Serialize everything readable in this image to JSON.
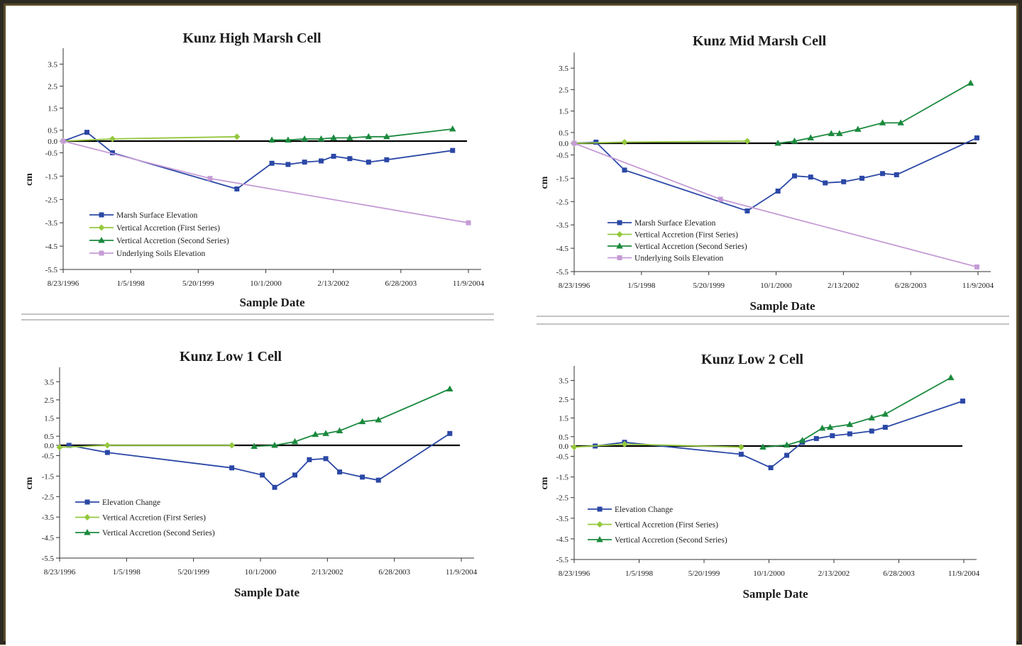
{
  "colors": {
    "elevation": "#2b48a6",
    "accretion_first": "#94c83d",
    "accretion_second": "#1b8a3e",
    "soils": "#c59bd6",
    "zero_line": "#000000"
  },
  "chart_data": [
    {
      "type": "line",
      "title": "Kunz High Marsh Cell",
      "xlabel": "Sample Date",
      "ylabel": "cm",
      "x_ticks": [
        "8/23/1996",
        "1/5/1998",
        "5/20/1999",
        "10/1/2000",
        "2/13/2002",
        "6/28/2003",
        "11/9/2004"
      ],
      "y_ticks": [
        3.5,
        2.5,
        1.5,
        0.5,
        0.0,
        -0.5,
        -1.5,
        -2.5,
        -3.5,
        -4.5,
        -5.5
      ],
      "y_tick_labels": [
        "3.5",
        "2.5",
        "1.5",
        "0.5",
        "0.0",
        "-0.5",
        "-1.5",
        "-2.5",
        "-3.5",
        "-4.5",
        "-5.5"
      ],
      "ylim": [
        -5.5,
        3.9
      ],
      "legend_position": "bottom-left",
      "series": [
        {
          "name": "Marsh Surface Elevation",
          "color": "elevation",
          "marker": "square",
          "x": [
            "1996-08-23",
            "1997-02-15",
            "1997-08-23",
            "2000-03-01",
            "2000-11-15",
            "2001-03-15",
            "2001-07-15",
            "2001-11-15",
            "2002-02-15",
            "2002-06-15",
            "2002-11-01",
            "2003-03-15",
            "2004-07-15"
          ],
          "y": [
            0.0,
            0.4,
            -0.5,
            -2.05,
            -0.95,
            -1.0,
            -0.9,
            -0.85,
            -0.65,
            -0.75,
            -0.9,
            -0.8,
            -0.4
          ]
        },
        {
          "name": "Vertical Accretion (First Series)",
          "color": "accretion_first",
          "marker": "diamond",
          "x": [
            "1996-08-23",
            "1997-08-23",
            "2000-03-01"
          ],
          "y": [
            0.0,
            0.1,
            0.2
          ]
        },
        {
          "name": "Vertical Accretion (Second Series)",
          "color": "accretion_second",
          "marker": "triangle",
          "x": [
            "2000-11-15",
            "2001-03-15",
            "2001-07-15",
            "2001-11-15",
            "2002-02-15",
            "2002-06-15",
            "2002-11-01",
            "2003-03-15",
            "2004-07-15"
          ],
          "y": [
            0.05,
            0.05,
            0.1,
            0.1,
            0.15,
            0.15,
            0.2,
            0.2,
            0.55
          ]
        },
        {
          "name": "Underlying Soils Elevation",
          "color": "soils",
          "marker": "square",
          "x": [
            "1996-08-23",
            "1999-08-15",
            "2004-11-09"
          ],
          "y": [
            0.0,
            -1.6,
            -3.5
          ]
        }
      ]
    },
    {
      "type": "line",
      "title": "Kunz Mid Marsh Cell",
      "xlabel": "Sample Date",
      "ylabel": "cm",
      "x_ticks": [
        "8/23/1996",
        "1/5/1998",
        "5/20/1999",
        "10/1/2000",
        "2/13/2002",
        "6/28/2003",
        "11/9/2004"
      ],
      "y_ticks": [
        3.5,
        2.5,
        1.5,
        0.5,
        0.0,
        -0.5,
        -1.5,
        -2.5,
        -3.5,
        -4.5,
        -5.5
      ],
      "y_tick_labels": [
        "3.5",
        "2.5",
        "1.5",
        "0.5",
        "0.0",
        "-0.5",
        "-1.5",
        "-2.5",
        "-3.5",
        "-4.5",
        "-5.5"
      ],
      "ylim": [
        -5.5,
        3.9
      ],
      "legend_position": "bottom-left",
      "series": [
        {
          "name": "Marsh Surface Elevation",
          "color": "elevation",
          "marker": "square",
          "x": [
            "1996-08-23",
            "1997-02-01",
            "1997-09-01",
            "2000-03-01",
            "2000-10-15",
            "2001-02-15",
            "2001-06-15",
            "2001-10-01",
            "2002-02-15",
            "2002-07-01",
            "2002-12-01",
            "2003-03-15",
            "2004-11-01"
          ],
          "y": [
            0.0,
            0.05,
            -1.15,
            -2.9,
            -2.05,
            -1.4,
            -1.45,
            -1.7,
            -1.65,
            -1.5,
            -1.3,
            -1.35,
            0.25
          ]
        },
        {
          "name": "Vertical Accretion (First Series)",
          "color": "accretion_first",
          "marker": "diamond",
          "x": [
            "1996-08-23",
            "1997-09-01",
            "2000-03-01"
          ],
          "y": [
            0.0,
            0.05,
            0.1
          ]
        },
        {
          "name": "Vertical Accretion (Second Series)",
          "color": "accretion_second",
          "marker": "triangle",
          "x": [
            "2000-10-15",
            "2001-02-15",
            "2001-06-15",
            "2001-11-15",
            "2002-01-15",
            "2002-06-01",
            "2002-12-01",
            "2003-04-15",
            "2004-09-15"
          ],
          "y": [
            0.0,
            0.1,
            0.25,
            0.45,
            0.45,
            0.65,
            0.95,
            0.95,
            2.8
          ]
        },
        {
          "name": "Underlying Soils Elevation",
          "color": "soils",
          "marker": "square",
          "x": [
            "1996-08-23",
            "1999-08-15",
            "2004-11-01"
          ],
          "y": [
            0.0,
            -2.4,
            -5.3
          ]
        }
      ]
    },
    {
      "type": "line",
      "title": "Kunz Low 1 Cell",
      "xlabel": "Sample Date",
      "ylabel": "cm",
      "x_ticks": [
        "8/23/1996",
        "1/5/1998",
        "5/20/1999",
        "10/1/2000",
        "2/13/2002",
        "6/28/2003",
        "11/9/2004"
      ],
      "y_ticks": [
        3.5,
        2.5,
        1.5,
        0.5,
        0.0,
        -0.5,
        -1.5,
        -2.5,
        -3.5,
        -4.5,
        -5.5
      ],
      "y_tick_labels": [
        "3.5",
        "2.5",
        "1.5",
        "0.5",
        "0.0",
        "-0.5",
        "-1.5",
        "-2.5",
        "-3.5",
        "-4.5",
        "-5.5"
      ],
      "ylim": [
        -5.5,
        3.9
      ],
      "legend_position": "bottom-left",
      "series": [
        {
          "name": "Elevation Change",
          "color": "elevation",
          "marker": "square",
          "x": [
            "1996-11-01",
            "1997-08-15",
            "2000-03-01",
            "2000-10-15",
            "2001-01-15",
            "2001-06-15",
            "2001-10-01",
            "2002-02-01",
            "2002-05-15",
            "2002-11-01",
            "2003-03-01",
            "2004-08-15"
          ],
          "y": [
            0.0,
            -0.35,
            -1.1,
            -1.45,
            -2.05,
            -1.45,
            -0.7,
            -0.65,
            -1.3,
            -1.55,
            -1.7,
            0.65
          ]
        },
        {
          "name": "Vertical Accretion (First Series)",
          "color": "accretion_first",
          "marker": "diamond",
          "x": [
            "1996-08-23",
            "1997-08-15",
            "2000-03-01"
          ],
          "y": [
            -0.1,
            0.0,
            0.0
          ]
        },
        {
          "name": "Vertical Accretion (Second Series)",
          "color": "accretion_second",
          "marker": "triangle",
          "x": [
            "2000-08-15",
            "2001-01-15",
            "2001-06-15",
            "2001-11-15",
            "2002-02-01",
            "2002-05-15",
            "2002-11-01",
            "2003-03-01",
            "2004-08-15"
          ],
          "y": [
            -0.05,
            0.0,
            0.2,
            0.6,
            0.65,
            0.8,
            1.3,
            1.4,
            3.1
          ]
        }
      ]
    },
    {
      "type": "line",
      "title": "Kunz Low 2 Cell",
      "xlabel": "Sample Date",
      "ylabel": "cm",
      "x_ticks": [
        "8/23/1996",
        "1/5/1998",
        "5/20/1999",
        "10/1/2000",
        "2/13/2002",
        "6/28/2003",
        "11/9/2004"
      ],
      "y_ticks": [
        3.5,
        2.5,
        1.5,
        0.5,
        0.0,
        -0.5,
        -1.5,
        -2.5,
        -3.5,
        -4.5,
        -5.5
      ],
      "y_tick_labels": [
        "3.5",
        "2.5",
        "1.5",
        "0.5",
        "0.0",
        "-0.5",
        "-1.5",
        "-2.5",
        "-3.5",
        "-4.5",
        "-5.5"
      ],
      "ylim": [
        -5.5,
        3.9
      ],
      "legend_position": "bottom-left",
      "series": [
        {
          "name": "Elevation Change",
          "color": "elevation",
          "marker": "square",
          "x": [
            "1997-02-01",
            "1997-09-15",
            "2000-03-01",
            "2000-10-15",
            "2001-02-15",
            "2001-06-15",
            "2001-10-01",
            "2002-02-01",
            "2002-06-15",
            "2002-12-01",
            "2003-03-15",
            "2004-11-01"
          ],
          "y": [
            0.0,
            0.2,
            -0.4,
            -1.05,
            -0.45,
            0.2,
            0.4,
            0.55,
            0.65,
            0.8,
            1.0,
            2.4
          ]
        },
        {
          "name": "Vertical Accretion (First Series)",
          "color": "accretion_first",
          "marker": "diamond",
          "x": [
            "1996-08-23",
            "1997-09-15",
            "2000-03-01"
          ],
          "y": [
            -0.05,
            0.1,
            -0.05
          ]
        },
        {
          "name": "Vertical Accretion (Second Series)",
          "color": "accretion_second",
          "marker": "triangle",
          "x": [
            "2000-08-15",
            "2001-02-15",
            "2001-06-15",
            "2001-11-15",
            "2002-01-15",
            "2002-06-15",
            "2002-12-01",
            "2003-03-15",
            "2004-08-01"
          ],
          "y": [
            -0.05,
            0.05,
            0.3,
            0.95,
            1.0,
            1.15,
            1.5,
            1.7,
            3.65
          ]
        }
      ]
    }
  ]
}
